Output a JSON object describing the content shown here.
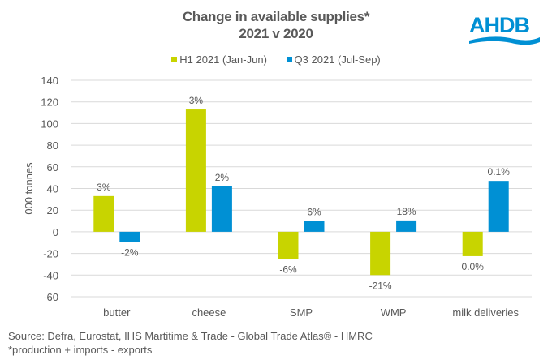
{
  "chart_data": {
    "type": "bar",
    "title": "Change in available supplies*",
    "subtitle": "2021 v 2020",
    "ylabel": "000 tonnes",
    "xlabel": "",
    "ylim": [
      -60,
      140
    ],
    "yticks": [
      140,
      120,
      100,
      80,
      60,
      40,
      20,
      0,
      -20,
      -40,
      -60
    ],
    "grid": true,
    "legend_position": "top",
    "categories": [
      "butter",
      "cheese",
      "SMP",
      "WMP",
      "milk deliveries"
    ],
    "series": [
      {
        "name": "H1 2021 (Jan-Jun)",
        "color": "#c8d400",
        "values": [
          33,
          113,
          -25,
          -40,
          -22.5
        ],
        "labels": [
          "3%",
          "3%",
          "-6%",
          "-21%",
          "0.0%"
        ]
      },
      {
        "name": "Q3 2021 (Jul-Sep)",
        "color": "#0090d4",
        "values": [
          -9.5,
          42,
          10,
          10.5,
          47
        ],
        "labels": [
          "-2%",
          "2%",
          "6%",
          "18%",
          "0.1%"
        ]
      }
    ]
  },
  "logo": {
    "text": "AHDB",
    "color": "#0090d4"
  },
  "footer": {
    "source": "Source: Defra, Eurostat, IHS  Martitime & Trade - Global Trade Atlas® - HMRC",
    "note": "*production + imports - exports"
  }
}
